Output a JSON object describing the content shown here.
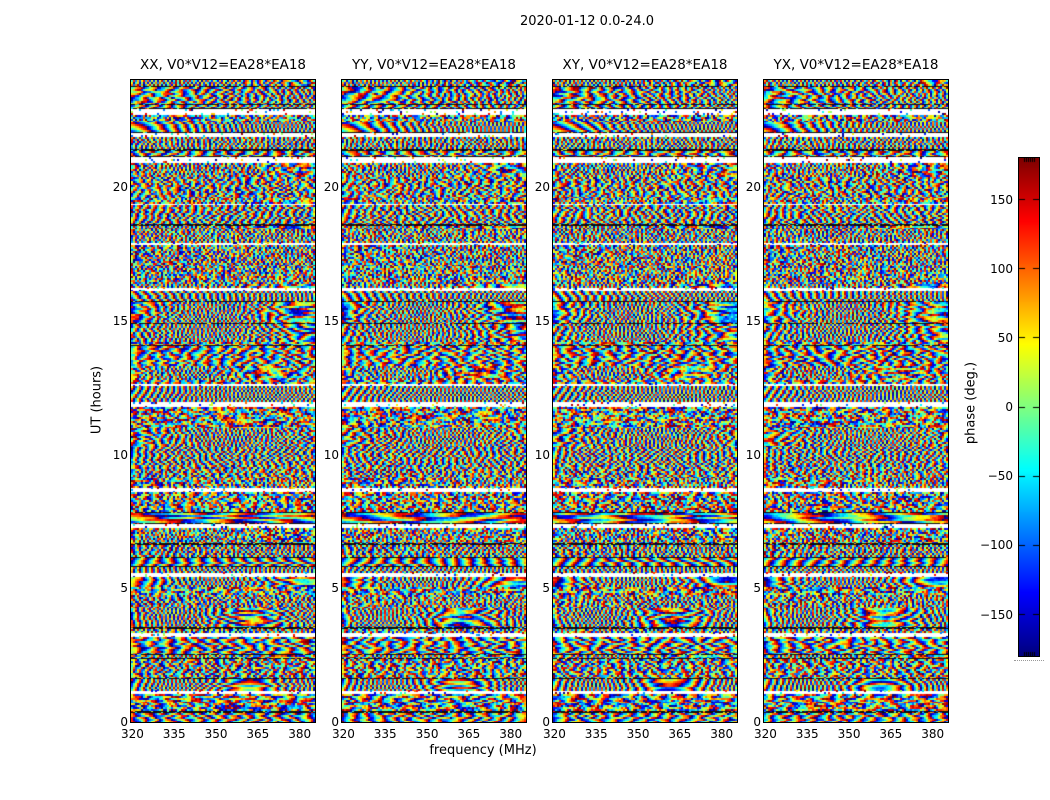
{
  "chart_data": {
    "type": "heatmap",
    "title": "2020-01-12 0.0-24.0",
    "date": "2020-01-12",
    "time_range_hours": [
      0.0,
      24.0
    ],
    "baseline": "V0*V12=EA28*EA18",
    "panels": [
      {
        "pol": "XX",
        "title": "XX, V0*V12=EA28*EA18"
      },
      {
        "pol": "YY",
        "title": "YY, V0*V12=EA28*EA18"
      },
      {
        "pol": "XY",
        "title": "XY, V0*V12=EA28*EA18"
      },
      {
        "pol": "YX",
        "title": "YX, V0*V12=EA28*EA18"
      }
    ],
    "xlabel": "frequency (MHz)",
    "ylabel": "UT (hours)",
    "xlim_mhz": [
      319.5,
      385.5
    ],
    "ylim_hours": [
      0,
      24
    ],
    "x_ticks_mhz": [
      320,
      335,
      350,
      365,
      380
    ],
    "y_ticks_hours": [
      0,
      5,
      10,
      15,
      20
    ],
    "colorbar": {
      "label": "phase (deg.)",
      "ticks_deg": [
        150,
        100,
        50,
        0,
        -50,
        -100,
        -150
      ],
      "clim_deg": [
        -180,
        180
      ],
      "colormap": "jet"
    },
    "grid": false,
    "flagged_time_bands_ut_hours": [
      22.8,
      21.9,
      21.0,
      18.35,
      17.8,
      16.1,
      14.0,
      12.55,
      11.8,
      8.65,
      7.3,
      5.45,
      3.2,
      2.3,
      1.05
    ],
    "data_description": "Noise-like interferometric visibility phase versus frequency (x) and UT time (y) for four polarization products of baseline V0*V12=EA28*EA18; phase values wrap within -180..180 deg (jet colormap); horizontal white rows are flagged times shared by all four panels; many time blocks show fringe stripes that become finer toward higher frequency."
  }
}
